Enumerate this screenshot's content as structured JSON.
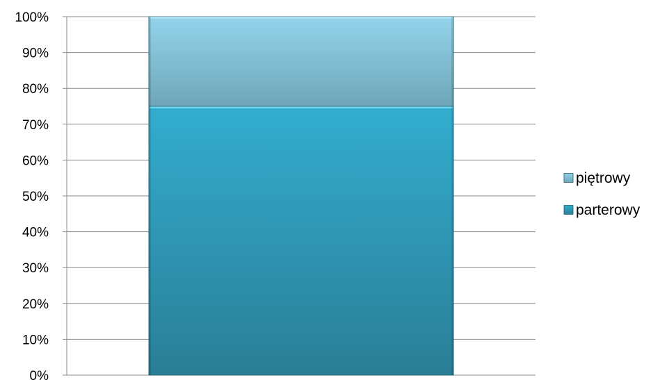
{
  "chart_data": {
    "type": "bar",
    "stacked": true,
    "stack_mode": "percent",
    "categories": [
      ""
    ],
    "series": [
      {
        "name": "parterowy",
        "values": [
          75
        ],
        "color": "#2f9ec0"
      },
      {
        "name": "piętrowy",
        "values": [
          25
        ],
        "color": "#85c3d8"
      }
    ],
    "ylim": [
      0,
      100
    ],
    "yticks": [
      "0%",
      "10%",
      "20%",
      "30%",
      "40%",
      "50%",
      "60%",
      "70%",
      "80%",
      "90%",
      "100%"
    ],
    "grid": true,
    "legend_position": "right",
    "legend_order": [
      "piętrowy",
      "parterowy"
    ],
    "title": "",
    "xlabel": "",
    "ylabel": ""
  }
}
